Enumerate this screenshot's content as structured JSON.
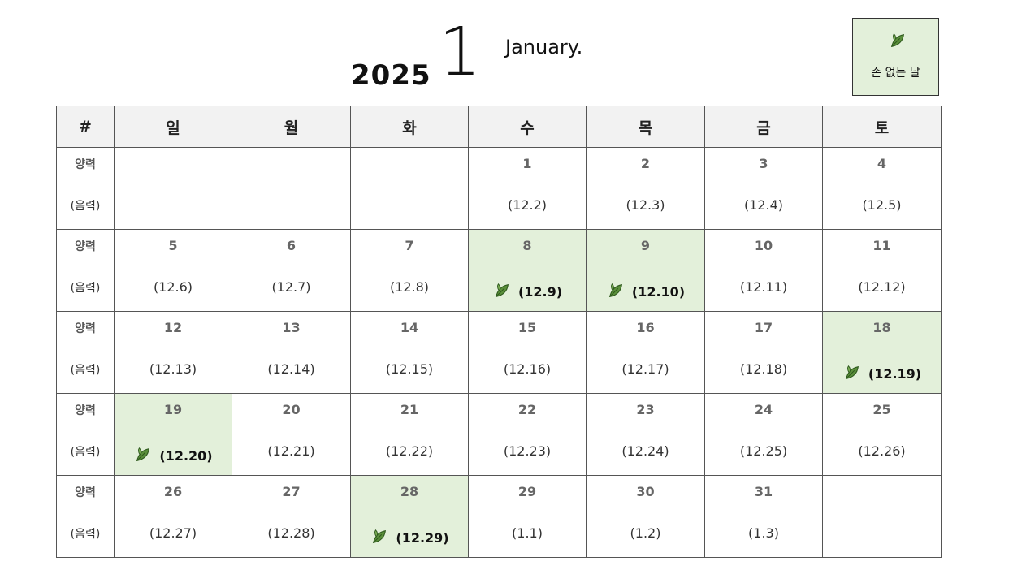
{
  "header": {
    "year": "2025",
    "month_number": "1",
    "month_name": "January."
  },
  "legend": {
    "icon": "leaf-icon",
    "label": "손 없는 날"
  },
  "colors": {
    "highlight": "#e3f0da",
    "header_bg": "#f2f2f2",
    "leaf": "#5a8f3a"
  },
  "table": {
    "corner": "#",
    "weekdays": [
      "일",
      "월",
      "화",
      "수",
      "목",
      "금",
      "토"
    ],
    "row_label_solar": "양력",
    "row_label_lunar": "(음력)",
    "weeks": [
      [
        {
          "day": "",
          "lunar": "",
          "son_eomneun": false
        },
        {
          "day": "",
          "lunar": "",
          "son_eomneun": false
        },
        {
          "day": "",
          "lunar": "",
          "son_eomneun": false
        },
        {
          "day": "1",
          "lunar": "(12.2)",
          "son_eomneun": false
        },
        {
          "day": "2",
          "lunar": "(12.3)",
          "son_eomneun": false
        },
        {
          "day": "3",
          "lunar": "(12.4)",
          "son_eomneun": false
        },
        {
          "day": "4",
          "lunar": "(12.5)",
          "son_eomneun": false
        }
      ],
      [
        {
          "day": "5",
          "lunar": "(12.6)",
          "son_eomneun": false
        },
        {
          "day": "6",
          "lunar": "(12.7)",
          "son_eomneun": false
        },
        {
          "day": "7",
          "lunar": "(12.8)",
          "son_eomneun": false
        },
        {
          "day": "8",
          "lunar": "(12.9)",
          "son_eomneun": true
        },
        {
          "day": "9",
          "lunar": "(12.10)",
          "son_eomneun": true
        },
        {
          "day": "10",
          "lunar": "(12.11)",
          "son_eomneun": false
        },
        {
          "day": "11",
          "lunar": "(12.12)",
          "son_eomneun": false
        }
      ],
      [
        {
          "day": "12",
          "lunar": "(12.13)",
          "son_eomneun": false
        },
        {
          "day": "13",
          "lunar": "(12.14)",
          "son_eomneun": false
        },
        {
          "day": "14",
          "lunar": "(12.15)",
          "son_eomneun": false
        },
        {
          "day": "15",
          "lunar": "(12.16)",
          "son_eomneun": false
        },
        {
          "day": "16",
          "lunar": "(12.17)",
          "son_eomneun": false
        },
        {
          "day": "17",
          "lunar": "(12.18)",
          "son_eomneun": false
        },
        {
          "day": "18",
          "lunar": "(12.19)",
          "son_eomneun": true
        }
      ],
      [
        {
          "day": "19",
          "lunar": "(12.20)",
          "son_eomneun": true
        },
        {
          "day": "20",
          "lunar": "(12.21)",
          "son_eomneun": false
        },
        {
          "day": "21",
          "lunar": "(12.22)",
          "son_eomneun": false
        },
        {
          "day": "22",
          "lunar": "(12.23)",
          "son_eomneun": false
        },
        {
          "day": "23",
          "lunar": "(12.24)",
          "son_eomneun": false
        },
        {
          "day": "24",
          "lunar": "(12.25)",
          "son_eomneun": false
        },
        {
          "day": "25",
          "lunar": "(12.26)",
          "son_eomneun": false
        }
      ],
      [
        {
          "day": "26",
          "lunar": "(12.27)",
          "son_eomneun": false
        },
        {
          "day": "27",
          "lunar": "(12.28)",
          "son_eomneun": false
        },
        {
          "day": "28",
          "lunar": "(12.29)",
          "son_eomneun": true
        },
        {
          "day": "29",
          "lunar": "(1.1)",
          "son_eomneun": false
        },
        {
          "day": "30",
          "lunar": "(1.2)",
          "son_eomneun": false
        },
        {
          "day": "31",
          "lunar": "(1.3)",
          "son_eomneun": false
        },
        {
          "day": "",
          "lunar": "",
          "son_eomneun": false
        }
      ]
    ]
  }
}
